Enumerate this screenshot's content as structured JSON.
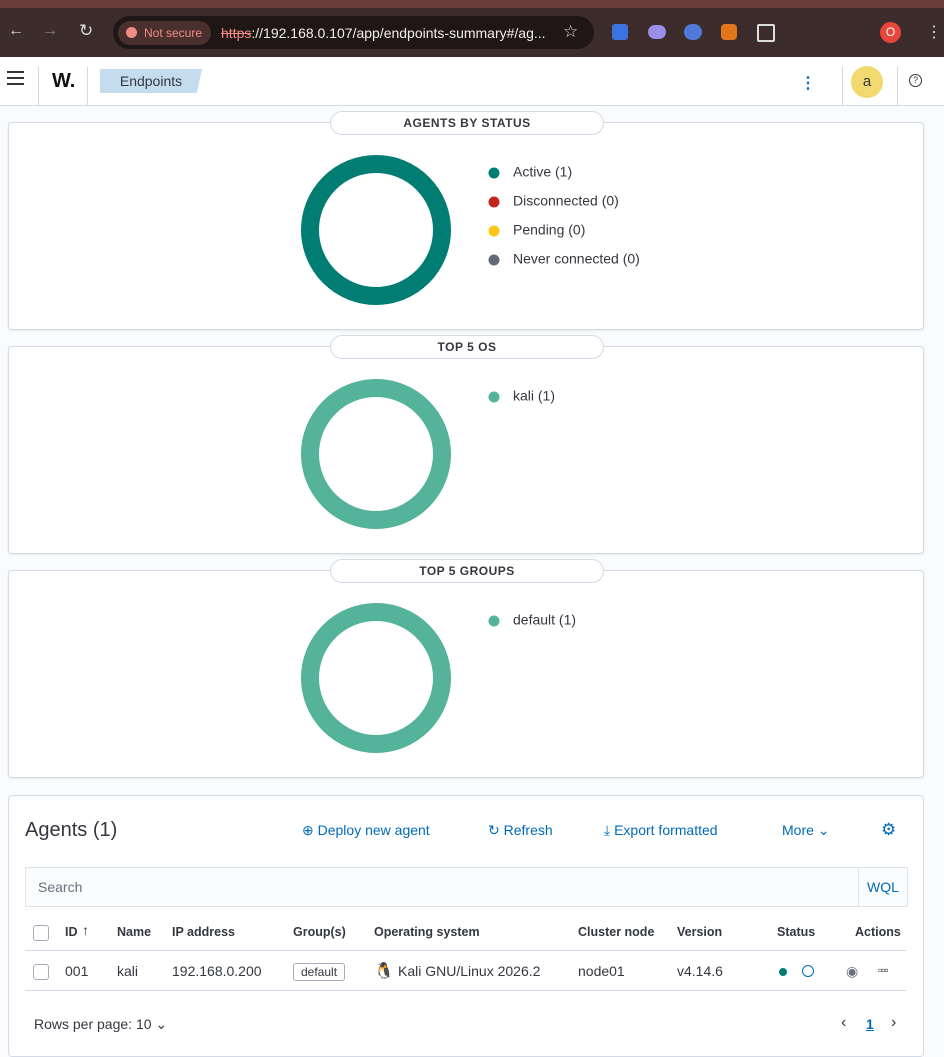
{
  "browser": {
    "security": "Not secure",
    "url_scheme": "https",
    "url_rest": "://192.168.0.107/app/endpoints-summary#/ag...",
    "profile": "O"
  },
  "header": {
    "logo": "W.",
    "breadcrumb": "Endpoints",
    "avatar": "a"
  },
  "chart_data": [
    {
      "type": "pie",
      "donut": true,
      "legend": "right",
      "title": "AGENTS BY STATUS",
      "categories": [
        "Active (1)",
        "Disconnected (0)",
        "Pending (0)",
        "Never connected (0)"
      ],
      "values": [
        1,
        0,
        0,
        0
      ],
      "colors": [
        "#017d73",
        "#bd271e",
        "#fec514",
        "#646a77"
      ]
    },
    {
      "type": "pie",
      "donut": true,
      "legend": "right",
      "title": "TOP 5 OS",
      "categories": [
        "kali (1)"
      ],
      "values": [
        1
      ],
      "colors": [
        "#54b399"
      ]
    },
    {
      "type": "pie",
      "donut": true,
      "legend": "right",
      "title": "TOP 5 GROUPS",
      "categories": [
        "default (1)"
      ],
      "values": [
        1
      ],
      "colors": [
        "#54b399"
      ]
    }
  ],
  "agents": {
    "title": "Agents (1)",
    "actions": [
      "Deploy new agent",
      "Refresh",
      "Export formatted",
      "More"
    ],
    "search_placeholder": "Search",
    "query_language": "WQL",
    "table": {
      "columns": [
        "ID",
        "Name",
        "IP address",
        "Group(s)",
        "Operating system",
        "Cluster node",
        "Version",
        "Status",
        "Actions"
      ],
      "rows": [
        [
          "001",
          "kali",
          "192.168.0.200",
          "default",
          "Kali GNU/Linux 2026.2",
          "node01",
          "v4.14.6"
        ]
      ]
    },
    "rows_per_page": "Rows per page: 10",
    "page": "1"
  }
}
